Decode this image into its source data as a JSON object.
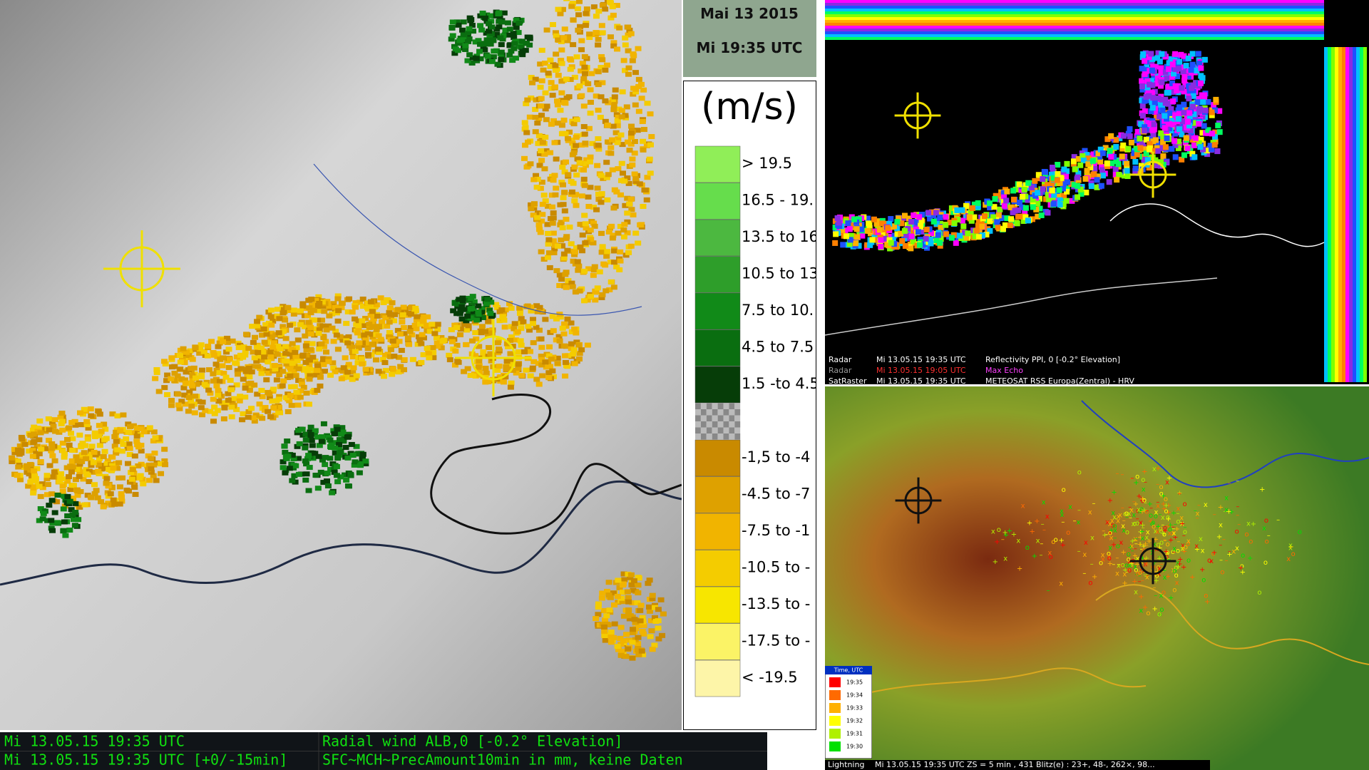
{
  "header": {
    "date": "Mai 13 2015",
    "time": "Mi 19:35 UTC"
  },
  "legend": {
    "unit": "(m/s)",
    "items": [
      {
        "label": "> 19.5",
        "color": "#90ee58"
      },
      {
        "label": "16.5 - 19.",
        "color": "#66dd4c"
      },
      {
        "label": "13.5 to 16",
        "color": "#4cb840"
      },
      {
        "label": "10.5 to 13",
        "color": "#2e9e2a"
      },
      {
        "label": "7.5 to 10.",
        "color": "#118a18"
      },
      {
        "label": "4.5 to 7.5",
        "color": "#0a6e10"
      },
      {
        "label": "1.5 -to 4.5",
        "color": "#063d08"
      },
      {
        "label": "-1,5 to -4",
        "color": "#c98a00"
      },
      {
        "label": "-4.5 to -7",
        "color": "#dea100"
      },
      {
        "label": "-7.5 to -1",
        "color": "#f1b400"
      },
      {
        "label": "-10.5 to -",
        "color": "#f4cc00"
      },
      {
        "label": "-13.5 to -",
        "color": "#f7e600"
      },
      {
        "label": "-17.5 to -",
        "color": "#fbf366"
      },
      {
        "label": "< -19.5",
        "color": "#fdf5a8"
      }
    ]
  },
  "left_status": {
    "rows": [
      [
        "Mi 13.05.15 19:35 UTC",
        "Radial wind ALB,0 [-0.2° Elevation]"
      ],
      [
        "Mi 13.05.15 19:35 UTC [+0/-15min]",
        "SFC~MCH~PrecAmount10min in mm, keine Daten"
      ]
    ]
  },
  "radar_info": {
    "rows": [
      [
        "Radar",
        "Mi 13.05.15 19:35 UTC",
        "Reflectivity  PPI, 0  [-0.2° Elevation]"
      ],
      [
        "Radar",
        "Mi 13.05.15 19:05 UTC",
        "Max Echo"
      ],
      [
        "SatRaster",
        "Mi 13.05.15 19:35 UTC",
        "METEOSAT RSS Europa(Zentral) - HRV"
      ]
    ]
  },
  "lightning_legend": {
    "title": "Time, UTC",
    "items": [
      {
        "label": "19:35",
        "color": "#ff0000"
      },
      {
        "label": "19:34",
        "color": "#ff6a00"
      },
      {
        "label": "19:33",
        "color": "#ffb000"
      },
      {
        "label": "19:32",
        "color": "#ffff00"
      },
      {
        "label": "19:31",
        "color": "#b0f000"
      },
      {
        "label": "19:30",
        "color": "#00e000"
      }
    ]
  },
  "lightning_status": {
    "name": "Lightning",
    "text": "Mi 13.05.15 19:35 UTC  ZS = 5 min , 431 Blitz(e) : 23+, 48-, 262×, 98..."
  }
}
